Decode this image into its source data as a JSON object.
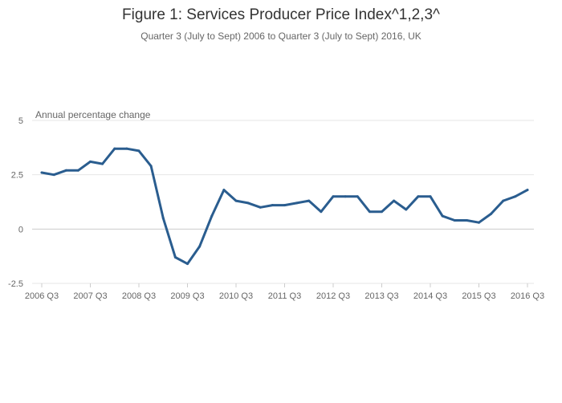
{
  "chart_data": {
    "type": "line",
    "title": "Figure 1: Services Producer Price Index^1,2,3^",
    "subtitle": "Quarter 3 (July to Sept) 2006 to Quarter 3 (July to Sept) 2016, UK",
    "xlabel": "",
    "ylabel": "Annual percentage change",
    "ylim": [
      -2.5,
      5
    ],
    "yticks": [
      5,
      2.5,
      0,
      -2.5
    ],
    "ytick_labels": [
      "5",
      "2.5",
      "0",
      "-2.5"
    ],
    "xtick_labels": [
      "2006 Q3",
      "2007 Q3",
      "2008 Q3",
      "2009 Q3",
      "2010 Q3",
      "2011 Q3",
      "2012 Q3",
      "2013 Q3",
      "2014 Q3",
      "2015 Q3",
      "2016 Q3"
    ],
    "grid": true,
    "legend": "none",
    "series": [
      {
        "name": "Services Producer Price Index",
        "color": "#2a5d8f",
        "values": [
          2.6,
          2.5,
          2.7,
          2.7,
          3.1,
          3.0,
          3.7,
          3.7,
          3.6,
          2.9,
          0.5,
          -1.3,
          -1.6,
          -0.8,
          0.6,
          1.8,
          1.3,
          1.2,
          1.0,
          1.1,
          1.1,
          1.2,
          1.3,
          0.8,
          1.5,
          1.5,
          1.5,
          0.8,
          0.8,
          1.3,
          0.9,
          1.5,
          1.5,
          0.6,
          0.4,
          0.4,
          0.3,
          0.7,
          1.3,
          1.5,
          1.8
        ]
      }
    ]
  }
}
